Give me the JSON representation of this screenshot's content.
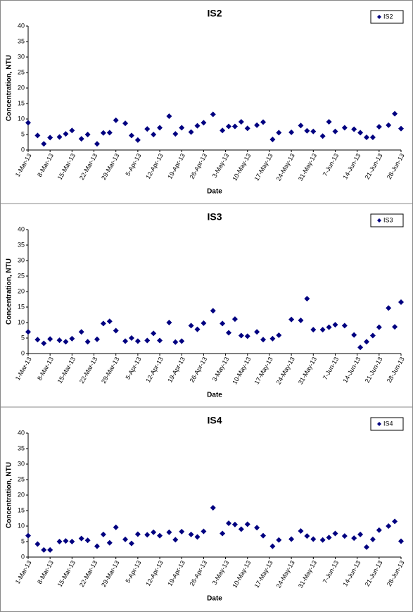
{
  "chart_data": [
    {
      "type": "scatter",
      "title": "IS2",
      "xlabel": "Date",
      "ylabel": "Concentration, NTU",
      "legend": "top-right",
      "grid": false,
      "x": [
        "2013-03-01",
        "2013-03-04",
        "2013-03-06",
        "2013-03-08",
        "2013-03-11",
        "2013-03-13",
        "2013-03-15",
        "2013-03-18",
        "2013-03-20",
        "2013-03-23",
        "2013-03-25",
        "2013-03-27",
        "2013-03-29",
        "2013-04-01",
        "2013-04-03",
        "2013-04-05",
        "2013-04-08",
        "2013-04-10",
        "2013-04-12",
        "2013-04-15",
        "2013-04-17",
        "2013-04-19",
        "2013-04-22",
        "2013-04-24",
        "2013-04-26",
        "2013-04-29",
        "2013-05-02",
        "2013-05-04",
        "2013-05-06",
        "2013-05-08",
        "2013-05-10",
        "2013-05-13",
        "2013-05-15",
        "2013-05-18",
        "2013-05-20",
        "2013-05-24",
        "2013-05-27",
        "2013-05-29",
        "2013-05-31",
        "2013-06-03",
        "2013-06-05",
        "2013-06-07",
        "2013-06-10",
        "2013-06-13",
        "2013-06-15",
        "2013-06-17",
        "2013-06-19",
        "2013-06-21",
        "2013-06-24",
        "2013-06-26",
        "2013-06-28"
      ],
      "series": [
        {
          "name": "IS2",
          "color": "#000080",
          "values": [
            8.8,
            4.7,
            2,
            4,
            4.2,
            5.2,
            6.3,
            3.6,
            5,
            2,
            5.5,
            5.6,
            9.6,
            8.6,
            4.7,
            3.2,
            6.8,
            5,
            7.2,
            10.9,
            5.2,
            7.2,
            5.8,
            7.8,
            8.8,
            11.5,
            6.3,
            7.6,
            7.6,
            9.1,
            7,
            8,
            9,
            3.4,
            5.6,
            5.7,
            7.9,
            6.2,
            6,
            4.5,
            9.1,
            6,
            7.2,
            6.7,
            5.6,
            4.1,
            4.1,
            7.5,
            8,
            11.7,
            6.9
          ]
        }
      ],
      "xlim": [
        "2013-03-01",
        "2013-06-28"
      ],
      "xticks": [
        {
          "value": "2013-03-01",
          "label": "1-Mar-13"
        },
        {
          "value": "2013-03-08",
          "label": "8-Mar-13"
        },
        {
          "value": "2013-03-15",
          "label": "15-Mar-13"
        },
        {
          "value": "2013-03-22",
          "label": "22-Mar-13"
        },
        {
          "value": "2013-03-29",
          "label": "29-Mar-13"
        },
        {
          "value": "2013-04-05",
          "label": "5-Apr-13"
        },
        {
          "value": "2013-04-12",
          "label": "12-Apr-13"
        },
        {
          "value": "2013-04-19",
          "label": "19-Apr-13"
        },
        {
          "value": "2013-04-26",
          "label": "26-Apr-13"
        },
        {
          "value": "2013-05-03",
          "label": "3-May-13"
        },
        {
          "value": "2013-05-10",
          "label": "10-May-13"
        },
        {
          "value": "2013-05-17",
          "label": "17-May-13"
        },
        {
          "value": "2013-05-24",
          "label": "24-May-13"
        },
        {
          "value": "2013-05-31",
          "label": "31-May-13"
        },
        {
          "value": "2013-06-07",
          "label": "7-Jun-13"
        },
        {
          "value": "2013-06-14",
          "label": "14-Jun-13"
        },
        {
          "value": "2013-06-21",
          "label": "21-Jun-13"
        },
        {
          "value": "2013-06-28",
          "label": "28-Jun-13"
        }
      ],
      "ylim": [
        0,
        40
      ],
      "yticks": [
        0,
        5,
        10,
        15,
        20,
        25,
        30,
        35,
        40
      ]
    },
    {
      "type": "scatter",
      "title": "IS3",
      "xlabel": "Date",
      "ylabel": "Concentration, NTU",
      "legend": "top-right",
      "grid": false,
      "x": [
        "2013-03-01",
        "2013-03-04",
        "2013-03-06",
        "2013-03-08",
        "2013-03-11",
        "2013-03-13",
        "2013-03-15",
        "2013-03-18",
        "2013-03-20",
        "2013-03-23",
        "2013-03-25",
        "2013-03-27",
        "2013-03-29",
        "2013-04-01",
        "2013-04-03",
        "2013-04-05",
        "2013-04-08",
        "2013-04-10",
        "2013-04-12",
        "2013-04-15",
        "2013-04-17",
        "2013-04-19",
        "2013-04-22",
        "2013-04-24",
        "2013-04-26",
        "2013-04-29",
        "2013-05-02",
        "2013-05-04",
        "2013-05-06",
        "2013-05-08",
        "2013-05-10",
        "2013-05-13",
        "2013-05-15",
        "2013-05-18",
        "2013-05-20",
        "2013-05-24",
        "2013-05-27",
        "2013-05-29",
        "2013-05-31",
        "2013-06-03",
        "2013-06-05",
        "2013-06-07",
        "2013-06-10",
        "2013-06-13",
        "2013-06-15",
        "2013-06-17",
        "2013-06-19",
        "2013-06-21",
        "2013-06-24",
        "2013-06-26",
        "2013-06-28"
      ],
      "series": [
        {
          "name": "IS3",
          "color": "#000080",
          "values": [
            7,
            4.5,
            3.3,
            4.7,
            4.3,
            3.8,
            4.8,
            7,
            3.8,
            4.6,
            9.7,
            10.4,
            7.4,
            4,
            5,
            4,
            4.2,
            6.5,
            4.2,
            10,
            3.7,
            4,
            9,
            7.8,
            9.8,
            13.8,
            9.7,
            6.7,
            11.1,
            5.8,
            5.6,
            7,
            4.5,
            4.8,
            5.9,
            11,
            10.7,
            17.7,
            7.7,
            7.7,
            8.5,
            9.3,
            9,
            6,
            2,
            3.8,
            5.8,
            8.5,
            14.7,
            8.6,
            16.6
          ]
        }
      ],
      "xlim": [
        "2013-03-01",
        "2013-06-28"
      ],
      "xticks": [
        {
          "value": "2013-03-01",
          "label": "1-Mar-13"
        },
        {
          "value": "2013-03-08",
          "label": "8-Mar-13"
        },
        {
          "value": "2013-03-15",
          "label": "15-Mar-13"
        },
        {
          "value": "2013-03-22",
          "label": "22-Mar-13"
        },
        {
          "value": "2013-03-29",
          "label": "29-Mar-13"
        },
        {
          "value": "2013-04-05",
          "label": "5-Apr-13"
        },
        {
          "value": "2013-04-12",
          "label": "12-Apr-13"
        },
        {
          "value": "2013-04-19",
          "label": "19-Apr-13"
        },
        {
          "value": "2013-04-26",
          "label": "26-Apr-13"
        },
        {
          "value": "2013-05-03",
          "label": "3-May-13"
        },
        {
          "value": "2013-05-10",
          "label": "10-May-13"
        },
        {
          "value": "2013-05-17",
          "label": "17-May-13"
        },
        {
          "value": "2013-05-24",
          "label": "24-May-13"
        },
        {
          "value": "2013-05-31",
          "label": "31-May-13"
        },
        {
          "value": "2013-06-07",
          "label": "7-Jun-13"
        },
        {
          "value": "2013-06-14",
          "label": "14-Jun-13"
        },
        {
          "value": "2013-06-21",
          "label": "21-Jun-13"
        },
        {
          "value": "2013-06-28",
          "label": "28-Jun-13"
        }
      ],
      "ylim": [
        0,
        40
      ],
      "yticks": [
        0,
        5,
        10,
        15,
        20,
        25,
        30,
        35,
        40
      ]
    },
    {
      "type": "scatter",
      "title": "IS4",
      "xlabel": "Date",
      "ylabel": "Concentration, NTU",
      "legend": "top-right",
      "grid": false,
      "x": [
        "2013-03-01",
        "2013-03-04",
        "2013-03-06",
        "2013-03-08",
        "2013-03-11",
        "2013-03-13",
        "2013-03-15",
        "2013-03-18",
        "2013-03-20",
        "2013-03-23",
        "2013-03-25",
        "2013-03-27",
        "2013-03-29",
        "2013-04-01",
        "2013-04-03",
        "2013-04-05",
        "2013-04-08",
        "2013-04-10",
        "2013-04-12",
        "2013-04-15",
        "2013-04-17",
        "2013-04-19",
        "2013-04-22",
        "2013-04-24",
        "2013-04-26",
        "2013-04-29",
        "2013-05-02",
        "2013-05-04",
        "2013-05-06",
        "2013-05-08",
        "2013-05-10",
        "2013-05-13",
        "2013-05-15",
        "2013-05-18",
        "2013-05-20",
        "2013-05-24",
        "2013-05-27",
        "2013-05-29",
        "2013-05-31",
        "2013-06-03",
        "2013-06-05",
        "2013-06-07",
        "2013-06-10",
        "2013-06-13",
        "2013-06-15",
        "2013-06-17",
        "2013-06-19",
        "2013-06-21",
        "2013-06-24",
        "2013-06-26",
        "2013-06-28"
      ],
      "series": [
        {
          "name": "IS4",
          "color": "#000080",
          "values": [
            6.9,
            4.2,
            2.3,
            2.3,
            5,
            5.2,
            5,
            6,
            5.4,
            3.5,
            7.3,
            4.6,
            9.6,
            5.7,
            4.4,
            7.4,
            7.2,
            8,
            6.9,
            8,
            5.6,
            8.2,
            7.3,
            6.5,
            8.3,
            15.9,
            7.6,
            10.9,
            10.5,
            9,
            10.6,
            9.5,
            6.9,
            3.5,
            5.5,
            5.8,
            8.4,
            6.8,
            5.8,
            5.5,
            6.3,
            7.6,
            6.8,
            6.1,
            7.3,
            3.2,
            5.7,
            8.7,
            10,
            11.5,
            5.1
          ]
        }
      ],
      "xlim": [
        "2013-03-01",
        "2013-06-28"
      ],
      "xticks": [
        {
          "value": "2013-03-01",
          "label": "1-Mar-13"
        },
        {
          "value": "2013-03-08",
          "label": "8-Mar-13"
        },
        {
          "value": "2013-03-15",
          "label": "15-Mar-13"
        },
        {
          "value": "2013-03-22",
          "label": "22-Mar-13"
        },
        {
          "value": "2013-03-29",
          "label": "29-Mar-13"
        },
        {
          "value": "2013-04-05",
          "label": "5-Apr-13"
        },
        {
          "value": "2013-04-12",
          "label": "12-Apr-13"
        },
        {
          "value": "2013-04-19",
          "label": "19-Apr-13"
        },
        {
          "value": "2013-04-26",
          "label": "26-Apr-13"
        },
        {
          "value": "2013-05-03",
          "label": "3-May-13"
        },
        {
          "value": "2013-05-10",
          "label": "10-May-13"
        },
        {
          "value": "2013-05-17",
          "label": "17-May-13"
        },
        {
          "value": "2013-05-24",
          "label": "24-May-13"
        },
        {
          "value": "2013-05-31",
          "label": "31-May-13"
        },
        {
          "value": "2013-06-07",
          "label": "7-Jun-13"
        },
        {
          "value": "2013-06-14",
          "label": "14-Jun-13"
        },
        {
          "value": "2013-06-21",
          "label": "21-Jun-13"
        },
        {
          "value": "2013-06-28",
          "label": "28-Jun-13"
        }
      ],
      "ylim": [
        0,
        40
      ],
      "yticks": [
        0,
        5,
        10,
        15,
        20,
        25,
        30,
        35,
        40
      ]
    }
  ]
}
